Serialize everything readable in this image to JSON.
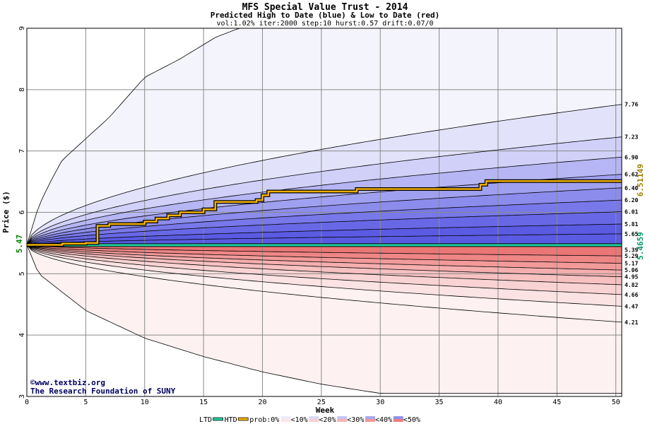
{
  "chart_data": {
    "type": "area",
    "title": "MFS Special Value Trust - 2014",
    "subtitle": "Predicted High to Date (blue) &  Low to Date (red)",
    "params": "vol:1.02% iter:2000 step:10 hurst:0.57 drift:0.07/0",
    "xlabel": "Week",
    "ylabel": "Price ($)",
    "xlim": [
      0,
      50.5
    ],
    "ylim": [
      3,
      9
    ],
    "x_ticks": [
      0,
      5,
      10,
      15,
      20,
      25,
      30,
      35,
      40,
      45,
      50
    ],
    "y_ticks": [
      3,
      4,
      5,
      6,
      7,
      8,
      9
    ],
    "x_tick_labels": [
      "0",
      "5",
      "10",
      "15",
      "20",
      "25",
      "30",
      "35",
      "40",
      "45",
      "50"
    ],
    "y_tick_labels": [
      "3",
      "4",
      "5",
      "6",
      "7",
      "8",
      "9"
    ],
    "grid": true,
    "start_price": 5.47,
    "start_label": "5.47",
    "high_to_date_label": "6.51149",
    "low_to_date_label": "5.4659",
    "high_bands_end": [
      5.65,
      5.81,
      6.01,
      6.2,
      6.4,
      6.62,
      6.9,
      7.23,
      7.76
    ],
    "low_bands_end": [
      5.29,
      5.17,
      5.06,
      4.95,
      4.82,
      4.66,
      4.47,
      4.21
    ],
    "end_labels": [
      "7.76",
      "7.23",
      "6.90",
      "6.62",
      "6.40",
      "6.20",
      "6.01",
      "5.81",
      "5.65",
      "5.39",
      "5.29",
      "5.17",
      "5.06",
      "4.95",
      "4.82",
      "4.66",
      "4.47",
      "4.21"
    ],
    "outer_upper": {
      "x": [
        0,
        1,
        2,
        3,
        5,
        7,
        10,
        13,
        16,
        18,
        20,
        50.5
      ],
      "y": [
        5.47,
        6.1,
        6.5,
        6.85,
        7.2,
        7.55,
        8.2,
        8.5,
        8.85,
        9.0,
        9.0,
        9.0
      ]
    },
    "outer_lower": {
      "x": [
        0,
        1,
        3,
        5,
        10,
        15,
        20,
        25,
        30,
        40,
        50.5
      ],
      "y": [
        5.47,
        5.0,
        4.7,
        4.4,
        3.95,
        3.65,
        3.4,
        3.2,
        3.05,
        3.05,
        3.05
      ]
    },
    "series": [
      {
        "name": "LTD",
        "color": "#20d0a0",
        "x": [
          0,
          50.5
        ],
        "y": [
          5.4659,
          5.4659
        ]
      },
      {
        "name": "HTD",
        "color": "#f0b000",
        "x": [
          0,
          3,
          3,
          5,
          5,
          6,
          6,
          7,
          7,
          10,
          10,
          11,
          11,
          12,
          12,
          13,
          13,
          15,
          15,
          16,
          16,
          19.5,
          19.5,
          20,
          20,
          20.5,
          20.5,
          28,
          28,
          38.5,
          38.5,
          39,
          39,
          50.5
        ],
        "y": [
          5.47,
          5.47,
          5.49,
          5.49,
          5.5,
          5.5,
          5.78,
          5.78,
          5.81,
          5.81,
          5.85,
          5.85,
          5.9,
          5.9,
          5.95,
          5.95,
          6.0,
          6.0,
          6.05,
          6.05,
          6.17,
          6.17,
          6.2,
          6.2,
          6.28,
          6.28,
          6.34,
          6.34,
          6.38,
          6.38,
          6.45,
          6.45,
          6.51,
          6.51
        ]
      }
    ],
    "footer": {
      "copyright": "©www.textbiz.org",
      "org": "The Research Foundation of SUNY"
    },
    "legend": {
      "placement": "bottom",
      "items": [
        "LTD",
        "HTD",
        "prob:0%",
        "<10%",
        "<20%",
        "<30%",
        "<40%",
        "<50%"
      ]
    },
    "colors": {
      "high_bands": [
        "#f4f4fc",
        "#e2e2fa",
        "#d0d0f8",
        "#b6b6f4",
        "#a0a0f0",
        "#8c8cec",
        "#7878ea",
        "#6868e6",
        "#5a5ae2"
      ],
      "low_bands": [
        "#fdf1f1",
        "#fbe3e3",
        "#f9d3d3",
        "#f7c1c1",
        "#f5aeae",
        "#f29a9a",
        "#ee8686",
        "#ea7676"
      ],
      "left_label": "#008000",
      "htd_label": "#a08000",
      "ltd_label": "#009966"
    }
  }
}
